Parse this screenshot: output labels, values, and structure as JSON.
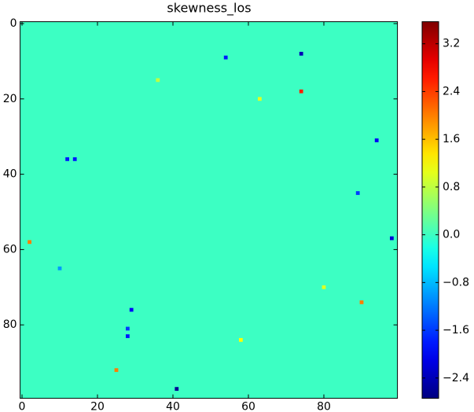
{
  "chart_data": {
    "type": "heatmap",
    "title": "skewness_los",
    "colormap": "jet",
    "fill_value": 0,
    "x": [
      74,
      74,
      54,
      94,
      98,
      2,
      41,
      25,
      29,
      90,
      12,
      14,
      89,
      28,
      28,
      58,
      63,
      36,
      10,
      80
    ],
    "y": [
      8,
      18,
      9,
      31,
      57,
      58,
      97,
      92,
      76,
      74,
      36,
      36,
      45,
      83,
      81,
      84,
      20,
      15,
      65,
      70
    ],
    "values": [
      -2.4,
      2.6,
      -1.8,
      -2.0,
      -2.2,
      2.0,
      -2.6,
      2.0,
      -2.0,
      2.0,
      -1.8,
      -1.8,
      -1.6,
      -1.8,
      -1.6,
      1.2,
      1.0,
      0.8,
      -1.0,
      1.0
    ],
    "xlim": [
      -0.5,
      99.5
    ],
    "ylim": [
      99.5,
      -0.5
    ],
    "xticks": [
      0,
      20,
      40,
      60,
      80
    ],
    "yticks": [
      0,
      20,
      40,
      60,
      80
    ],
    "clim": [
      -2.74,
      3.57
    ],
    "cticks": [
      3.2,
      2.4,
      1.6,
      0.8,
      {
        "value": 0,
        "label": "0.0"
      },
      {
        "value": -0.8,
        "label": "−0.8"
      },
      {
        "value": -1.6,
        "label": "−1.6"
      },
      {
        "value": -2.4,
        "label": "−2.4"
      }
    ]
  }
}
